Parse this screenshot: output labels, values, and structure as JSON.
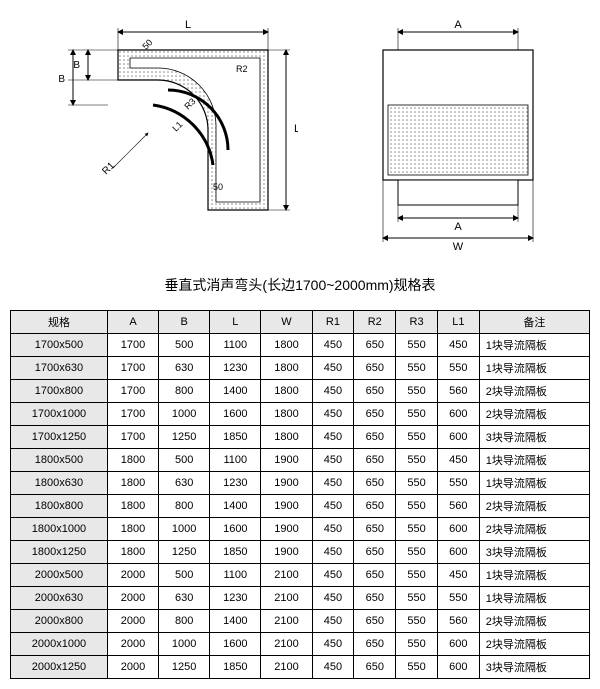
{
  "title": "垂直式消声弯头(长边1700~2000mm)规格表",
  "diagram": {
    "labels": {
      "L": "L",
      "B": "B",
      "A": "A",
      "W": "W",
      "R1": "R1",
      "R2": "R2",
      "R3": "R3",
      "L1": "L1",
      "fifty": "50"
    },
    "stroke": "#000000",
    "hatch": "#d0d0d0"
  },
  "table": {
    "headers": [
      "规格",
      "A",
      "B",
      "L",
      "W",
      "R1",
      "R2",
      "R3",
      "L1",
      "备注"
    ],
    "rows": [
      [
        "1700x500",
        "1700",
        "500",
        "1100",
        "1800",
        "450",
        "650",
        "550",
        "450",
        "1块导流隔板"
      ],
      [
        "1700x630",
        "1700",
        "630",
        "1230",
        "1800",
        "450",
        "650",
        "550",
        "550",
        "1块导流隔板"
      ],
      [
        "1700x800",
        "1700",
        "800",
        "1400",
        "1800",
        "450",
        "650",
        "550",
        "560",
        "2块导流隔板"
      ],
      [
        "1700x1000",
        "1700",
        "1000",
        "1600",
        "1800",
        "450",
        "650",
        "550",
        "600",
        "2块导流隔板"
      ],
      [
        "1700x1250",
        "1700",
        "1250",
        "1850",
        "1800",
        "450",
        "650",
        "550",
        "600",
        "3块导流隔板"
      ],
      [
        "1800x500",
        "1800",
        "500",
        "1100",
        "1900",
        "450",
        "650",
        "550",
        "450",
        "1块导流隔板"
      ],
      [
        "1800x630",
        "1800",
        "630",
        "1230",
        "1900",
        "450",
        "650",
        "550",
        "550",
        "1块导流隔板"
      ],
      [
        "1800x800",
        "1800",
        "800",
        "1400",
        "1900",
        "450",
        "650",
        "550",
        "560",
        "2块导流隔板"
      ],
      [
        "1800x1000",
        "1800",
        "1000",
        "1600",
        "1900",
        "450",
        "650",
        "550",
        "600",
        "2块导流隔板"
      ],
      [
        "1800x1250",
        "1800",
        "1250",
        "1850",
        "1900",
        "450",
        "650",
        "550",
        "600",
        "3块导流隔板"
      ],
      [
        "2000x500",
        "2000",
        "500",
        "1100",
        "2100",
        "450",
        "650",
        "550",
        "450",
        "1块导流隔板"
      ],
      [
        "2000x630",
        "2000",
        "630",
        "1230",
        "2100",
        "450",
        "650",
        "550",
        "550",
        "1块导流隔板"
      ],
      [
        "2000x800",
        "2000",
        "800",
        "1400",
        "2100",
        "450",
        "650",
        "550",
        "560",
        "2块导流隔板"
      ],
      [
        "2000x1000",
        "2000",
        "1000",
        "1600",
        "2100",
        "450",
        "650",
        "550",
        "600",
        "2块导流隔板"
      ],
      [
        "2000x1250",
        "2000",
        "1250",
        "1850",
        "2100",
        "450",
        "650",
        "550",
        "600",
        "3块导流隔板"
      ]
    ]
  }
}
